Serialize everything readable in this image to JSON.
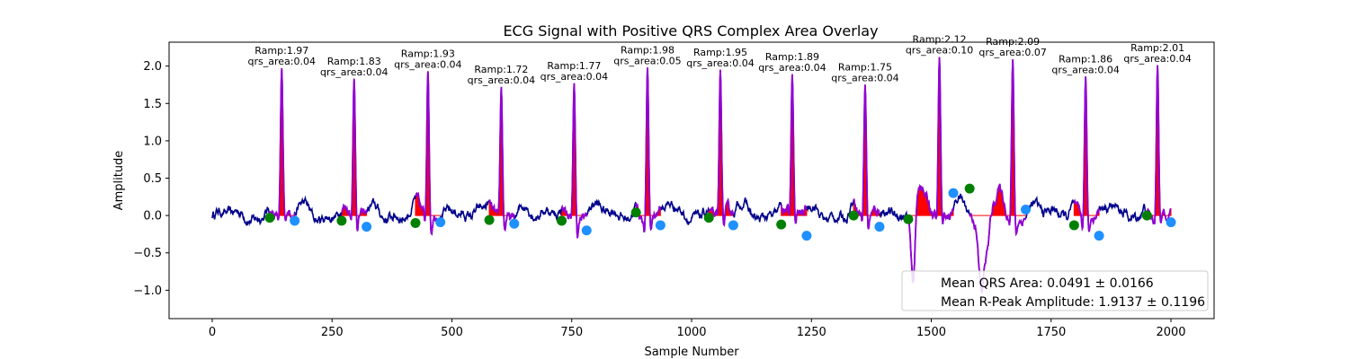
{
  "chart_data": {
    "type": "line",
    "title": "ECG Signal with Positive QRS Complex Area Overlay",
    "xlabel": "Sample Number",
    "ylabel": "Amplitude",
    "xlim": [
      -90,
      2090
    ],
    "ylim": [
      -1.38,
      2.32
    ],
    "xticks": [
      0,
      250,
      500,
      750,
      1000,
      1250,
      1500,
      1750,
      2000
    ],
    "yticks": [
      -1.0,
      -0.5,
      0.0,
      0.5,
      1.0,
      1.5,
      2.0
    ],
    "ytick_labels": [
      "−1.0",
      "−0.5",
      "0.0",
      "0.5",
      "1.0",
      "1.5",
      "2.0"
    ],
    "grid": false,
    "colors": {
      "signal": "#00008b",
      "qrs": "#9400d3",
      "fill": "#ff0000",
      "q_point": "#008000",
      "s_point": "#1e90ff"
    },
    "r_peaks": [
      {
        "x": 145,
        "amp": 1.97,
        "area": 0.04,
        "label1": "Ramp:1.97",
        "label2": "qrs_area:0.04"
      },
      {
        "x": 296,
        "amp": 1.83,
        "area": 0.04,
        "label1": "Ramp:1.83",
        "label2": "qrs_area:0.04"
      },
      {
        "x": 450,
        "amp": 1.93,
        "area": 0.04,
        "label1": "Ramp:1.93",
        "label2": "qrs_area:0.04"
      },
      {
        "x": 603,
        "amp": 1.72,
        "area": 0.04,
        "label1": "Ramp:1.72",
        "label2": "qrs_area:0.04"
      },
      {
        "x": 755,
        "amp": 1.77,
        "area": 0.04,
        "label1": "Ramp:1.77",
        "label2": "qrs_area:0.04"
      },
      {
        "x": 908,
        "amp": 1.98,
        "area": 0.05,
        "label1": "Ramp:1.98",
        "label2": "qrs_area:0.05"
      },
      {
        "x": 1060,
        "amp": 1.95,
        "area": 0.04,
        "label1": "Ramp:1.95",
        "label2": "qrs_area:0.04"
      },
      {
        "x": 1210,
        "amp": 1.89,
        "area": 0.04,
        "label1": "Ramp:1.89",
        "label2": "qrs_area:0.04"
      },
      {
        "x": 1362,
        "amp": 1.75,
        "area": 0.04,
        "label1": "Ramp:1.75",
        "label2": "qrs_area:0.04"
      },
      {
        "x": 1517,
        "amp": 2.12,
        "area": 0.1,
        "label1": "Ramp:2.12",
        "label2": "qrs_area:0.10"
      },
      {
        "x": 1670,
        "amp": 2.09,
        "area": 0.07,
        "label1": "Ramp:2.09",
        "label2": "qrs_area:0.07"
      },
      {
        "x": 1822,
        "amp": 1.86,
        "area": 0.04,
        "label1": "Ramp:1.86",
        "label2": "qrs_area:0.04"
      },
      {
        "x": 1972,
        "amp": 2.01,
        "area": 0.04,
        "label1": "Ramp:2.01",
        "label2": "qrs_area:0.04"
      }
    ],
    "q_points": [
      {
        "x": 120,
        "y": -0.03
      },
      {
        "x": 270,
        "y": -0.07
      },
      {
        "x": 424,
        "y": -0.1
      },
      {
        "x": 578,
        "y": -0.06
      },
      {
        "x": 729,
        "y": -0.07
      },
      {
        "x": 884,
        "y": 0.04
      },
      {
        "x": 1036,
        "y": -0.03
      },
      {
        "x": 1187,
        "y": -0.12
      },
      {
        "x": 1338,
        "y": 0.0
      },
      {
        "x": 1452,
        "y": -0.05
      },
      {
        "x": 1580,
        "y": 0.36
      },
      {
        "x": 1798,
        "y": -0.13
      },
      {
        "x": 1950,
        "y": 0.0
      }
    ],
    "s_points": [
      {
        "x": 172,
        "y": -0.07
      },
      {
        "x": 322,
        "y": -0.15
      },
      {
        "x": 476,
        "y": -0.09
      },
      {
        "x": 630,
        "y": -0.11
      },
      {
        "x": 781,
        "y": -0.2
      },
      {
        "x": 935,
        "y": -0.13
      },
      {
        "x": 1087,
        "y": -0.13
      },
      {
        "x": 1240,
        "y": -0.27
      },
      {
        "x": 1392,
        "y": -0.15
      },
      {
        "x": 1546,
        "y": 0.3
      },
      {
        "x": 1697,
        "y": 0.08
      },
      {
        "x": 1850,
        "y": -0.27
      },
      {
        "x": 2000,
        "y": -0.09
      }
    ],
    "legend": {
      "position": "lower-right",
      "entries": [
        "Mean QRS Area: 0.0491 ± 0.0166",
        "Mean R-Peak Amplitude: 1.9137 ± 0.1196"
      ]
    }
  }
}
